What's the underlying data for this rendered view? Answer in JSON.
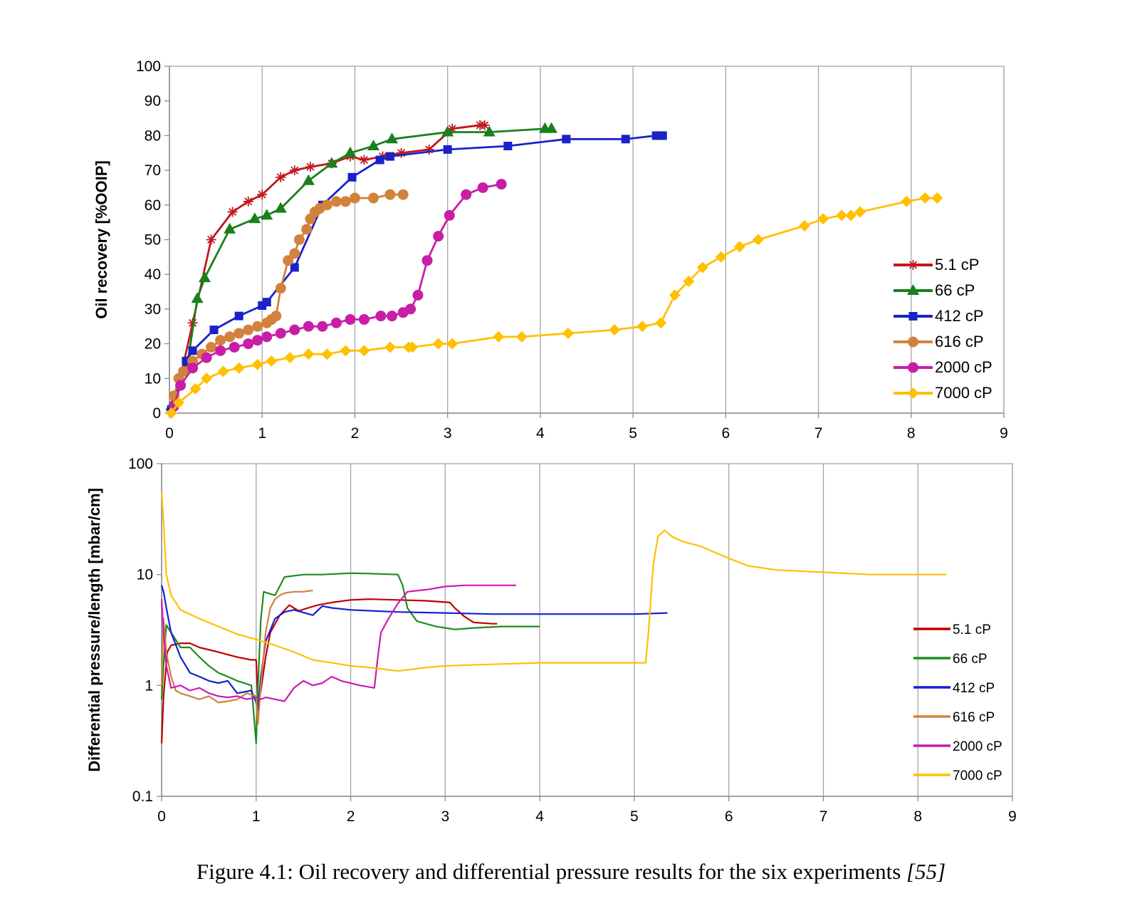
{
  "caption": {
    "text": "Figure 4.1: Oil recovery and differential pressure results for the six experiments ",
    "ref": "[55]"
  },
  "chart_data": [
    {
      "type": "line",
      "ylabel": "Oil recovery [%OOIP]",
      "xlabel": "",
      "xlim": [
        0,
        9
      ],
      "ylim": [
        0,
        100
      ],
      "xticks": [
        0,
        1,
        2,
        3,
        4,
        5,
        6,
        7,
        8,
        9
      ],
      "yticks": [
        0,
        10,
        20,
        30,
        40,
        50,
        60,
        70,
        80,
        90,
        100
      ],
      "grid": "vertical",
      "legend": "right",
      "series": [
        {
          "name": "5.1 cP",
          "color": "#c0171f",
          "marker": "star",
          "x": [
            0.05,
            0.25,
            0.45,
            0.68,
            0.85,
            1.0,
            1.2,
            1.35,
            1.52,
            1.75,
            1.95,
            2.1,
            2.3,
            2.5,
            2.8,
            3.05,
            3.35,
            3.4
          ],
          "y": [
            2,
            26,
            50,
            58,
            61,
            63,
            68,
            70,
            71,
            72,
            74,
            73,
            74,
            75,
            76,
            82,
            83,
            83
          ]
        },
        {
          "name": "66 cP",
          "color": "#19801c",
          "marker": "triangle",
          "x": [
            0.02,
            0.2,
            0.3,
            0.38,
            0.65,
            0.92,
            1.05,
            1.2,
            1.5,
            1.75,
            1.95,
            2.2,
            2.4,
            3.0,
            3.45,
            4.05,
            4.12
          ],
          "y": [
            2,
            15,
            33,
            39,
            53,
            56,
            57,
            59,
            67,
            72,
            75,
            77,
            79,
            81,
            81,
            82,
            82
          ]
        },
        {
          "name": "412 cP",
          "color": "#1a22c8",
          "marker": "square",
          "x": [
            0.02,
            0.18,
            0.25,
            0.48,
            0.75,
            1.0,
            1.05,
            1.35,
            1.65,
            1.97,
            2.27,
            2.38,
            3.0,
            3.65,
            4.28,
            4.92,
            5.25,
            5.32
          ],
          "y": [
            1,
            15,
            18,
            24,
            28,
            31,
            32,
            42,
            60,
            68,
            73,
            74,
            76,
            77,
            79,
            79,
            80,
            80
          ]
        },
        {
          "name": "616 cP",
          "color": "#d2823c",
          "marker": "circle",
          "x": [
            0.05,
            0.1,
            0.15,
            0.25,
            0.35,
            0.45,
            0.55,
            0.65,
            0.75,
            0.85,
            0.95,
            1.05,
            1.1,
            1.15,
            1.2,
            1.28,
            1.35,
            1.4,
            1.48,
            1.52,
            1.57,
            1.62,
            1.7,
            1.8,
            1.9,
            2.0,
            2.2,
            2.38,
            2.52
          ],
          "y": [
            5,
            10,
            12,
            15,
            17,
            19,
            21,
            22,
            23,
            24,
            25,
            26,
            27,
            28,
            36,
            44,
            46,
            50,
            53,
            56,
            58,
            59,
            60,
            61,
            61,
            62,
            62,
            63,
            63
          ]
        },
        {
          "name": "2000 cP",
          "color": "#c81ea6",
          "marker": "circle",
          "x": [
            0.05,
            0.12,
            0.25,
            0.4,
            0.55,
            0.7,
            0.85,
            0.95,
            1.05,
            1.2,
            1.35,
            1.5,
            1.65,
            1.8,
            1.95,
            2.1,
            2.28,
            2.4,
            2.52,
            2.6,
            2.68,
            2.78,
            2.9,
            3.02,
            3.2,
            3.38,
            3.58
          ],
          "y": [
            2,
            8,
            13,
            16,
            18,
            19,
            20,
            21,
            22,
            23,
            24,
            25,
            25,
            26,
            27,
            27,
            28,
            28,
            29,
            30,
            34,
            44,
            51,
            57,
            63,
            65,
            66
          ]
        },
        {
          "name": "7000 cP",
          "color": "#ffc000",
          "marker": "diamond",
          "x": [
            0.02,
            0.1,
            0.28,
            0.4,
            0.58,
            0.75,
            0.95,
            1.1,
            1.3,
            1.5,
            1.7,
            1.9,
            2.1,
            2.38,
            2.58,
            2.62,
            2.9,
            3.05,
            3.55,
            3.8,
            4.3,
            4.8,
            5.1,
            5.3,
            5.45,
            5.6,
            5.75,
            5.95,
            6.15,
            6.35,
            6.85,
            7.05,
            7.25,
            7.35,
            7.45,
            7.95,
            8.15,
            8.28
          ],
          "y": [
            0,
            3,
            7,
            10,
            12,
            13,
            14,
            15,
            16,
            17,
            17,
            18,
            18,
            19,
            19,
            19,
            20,
            20,
            22,
            22,
            23,
            24,
            25,
            26,
            34,
            38,
            42,
            45,
            48,
            50,
            54,
            56,
            57,
            57,
            58,
            61,
            62,
            62
          ]
        }
      ]
    },
    {
      "type": "line",
      "ylabel": "Differential pressure/length  [mbar/cm]",
      "xlabel": "",
      "xlim": [
        0,
        9
      ],
      "ylim": [
        0.1,
        100
      ],
      "yscale": "log",
      "xticks": [
        0,
        1,
        2,
        3,
        4,
        5,
        6,
        7,
        8,
        9
      ],
      "ytick_labels": [
        "0.1",
        "1",
        "10",
        "100"
      ],
      "grid": "vertical",
      "legend": "right",
      "series": [
        {
          "name": "5.1 cP",
          "color": "#c00000",
          "x": [
            0.0,
            0.02,
            0.06,
            0.1,
            0.2,
            0.3,
            0.4,
            0.6,
            0.8,
            0.95,
            1.0,
            1.02,
            1.05,
            1.1,
            1.15,
            1.25,
            1.35,
            1.45,
            1.55,
            1.65,
            1.8,
            2.0,
            2.2,
            2.5,
            2.8,
            3.05,
            3.1,
            3.2,
            3.3,
            3.5,
            3.55
          ],
          "y": [
            0.3,
            0.8,
            2.0,
            2.3,
            2.4,
            2.4,
            2.2,
            2.0,
            1.8,
            1.7,
            1.7,
            0.7,
            0.9,
            1.8,
            3.0,
            4.3,
            5.3,
            4.7,
            5.0,
            5.3,
            5.6,
            5.9,
            6.0,
            5.9,
            5.8,
            5.6,
            5.0,
            4.2,
            3.7,
            3.6,
            3.6
          ]
        },
        {
          "name": "66 cP",
          "color": "#1e8c1e",
          "x": [
            0.0,
            0.02,
            0.05,
            0.1,
            0.2,
            0.3,
            0.4,
            0.5,
            0.6,
            0.7,
            0.8,
            0.95,
            1.0,
            1.02,
            1.05,
            1.08,
            1.12,
            1.2,
            1.3,
            1.5,
            1.7,
            2.0,
            2.2,
            2.5,
            2.55,
            2.6,
            2.7,
            2.9,
            3.1,
            3.3,
            3.6,
            4.0
          ],
          "y": [
            0.75,
            1.5,
            3.5,
            3.0,
            2.2,
            2.2,
            1.8,
            1.5,
            1.3,
            1.2,
            1.1,
            1.0,
            0.3,
            1.0,
            4.0,
            7.0,
            6.8,
            6.5,
            9.5,
            10.0,
            10.0,
            10.3,
            10.2,
            10.0,
            8.0,
            5.0,
            3.8,
            3.4,
            3.2,
            3.3,
            3.4,
            3.4
          ]
        },
        {
          "name": "412 cP",
          "color": "#1520d0",
          "x": [
            0.0,
            0.02,
            0.05,
            0.1,
            0.2,
            0.3,
            0.4,
            0.5,
            0.6,
            0.7,
            0.8,
            0.95,
            1.0,
            1.02,
            1.05,
            1.1,
            1.2,
            1.3,
            1.4,
            1.6,
            1.7,
            1.8,
            2.0,
            2.5,
            3.0,
            3.5,
            4.0,
            4.5,
            5.0,
            5.35
          ],
          "y": [
            8.0,
            7.0,
            5.0,
            3.0,
            1.8,
            1.3,
            1.2,
            1.1,
            1.05,
            1.1,
            0.85,
            0.9,
            0.7,
            0.6,
            1.2,
            2.5,
            4.0,
            4.6,
            4.8,
            4.3,
            5.2,
            5.0,
            4.8,
            4.6,
            4.5,
            4.4,
            4.4,
            4.4,
            4.4,
            4.5
          ]
        },
        {
          "name": "616 cP",
          "color": "#d2823c",
          "x": [
            0.0,
            0.02,
            0.05,
            0.1,
            0.15,
            0.2,
            0.3,
            0.4,
            0.5,
            0.6,
            0.7,
            0.8,
            0.9,
            1.0,
            1.02,
            1.05,
            1.1,
            1.15,
            1.2,
            1.25,
            1.3,
            1.4,
            1.5,
            1.6
          ],
          "y": [
            1.0,
            4.0,
            2.0,
            1.2,
            0.9,
            0.85,
            0.8,
            0.75,
            0.8,
            0.7,
            0.72,
            0.75,
            0.85,
            0.8,
            0.45,
            1.0,
            3.0,
            5.0,
            6.0,
            6.5,
            6.8,
            7.0,
            7.0,
            7.2
          ]
        },
        {
          "name": "2000 cP",
          "color": "#cc1ab0",
          "x": [
            0.0,
            0.02,
            0.05,
            0.1,
            0.2,
            0.3,
            0.4,
            0.5,
            0.6,
            0.7,
            0.8,
            0.9,
            1.0,
            1.05,
            1.1,
            1.2,
            1.3,
            1.4,
            1.5,
            1.6,
            1.7,
            1.8,
            1.9,
            2.1,
            2.25,
            2.28,
            2.32,
            2.4,
            2.5,
            2.6,
            2.8,
            3.0,
            3.2,
            3.5,
            3.75
          ],
          "y": [
            6.0,
            3.0,
            1.5,
            0.95,
            1.0,
            0.9,
            0.95,
            0.85,
            0.8,
            0.78,
            0.8,
            0.75,
            0.78,
            0.75,
            0.78,
            0.75,
            0.72,
            0.95,
            1.1,
            1.0,
            1.05,
            1.2,
            1.1,
            1.0,
            0.95,
            1.6,
            3.0,
            4.0,
            5.5,
            7.0,
            7.3,
            7.8,
            8.0,
            8.0,
            8.0
          ]
        },
        {
          "name": "7000 cP",
          "color": "#ffc000",
          "x": [
            0.0,
            0.02,
            0.05,
            0.1,
            0.2,
            0.4,
            0.6,
            0.8,
            1.0,
            1.2,
            1.4,
            1.6,
            1.8,
            2.0,
            2.2,
            2.5,
            2.8,
            3.0,
            3.5,
            4.0,
            4.5,
            5.0,
            5.12,
            5.15,
            5.2,
            5.25,
            5.32,
            5.4,
            5.5,
            5.7,
            6.0,
            6.2,
            6.5,
            7.0,
            7.5,
            8.0,
            8.3
          ],
          "y": [
            55,
            30,
            10,
            6.5,
            4.8,
            4.0,
            3.4,
            2.9,
            2.6,
            2.3,
            2.0,
            1.7,
            1.6,
            1.5,
            1.45,
            1.35,
            1.45,
            1.5,
            1.55,
            1.6,
            1.6,
            1.6,
            1.6,
            3.0,
            12,
            22,
            25,
            22,
            20,
            18,
            14,
            12,
            11,
            10.5,
            10,
            10,
            10
          ]
        }
      ]
    }
  ]
}
